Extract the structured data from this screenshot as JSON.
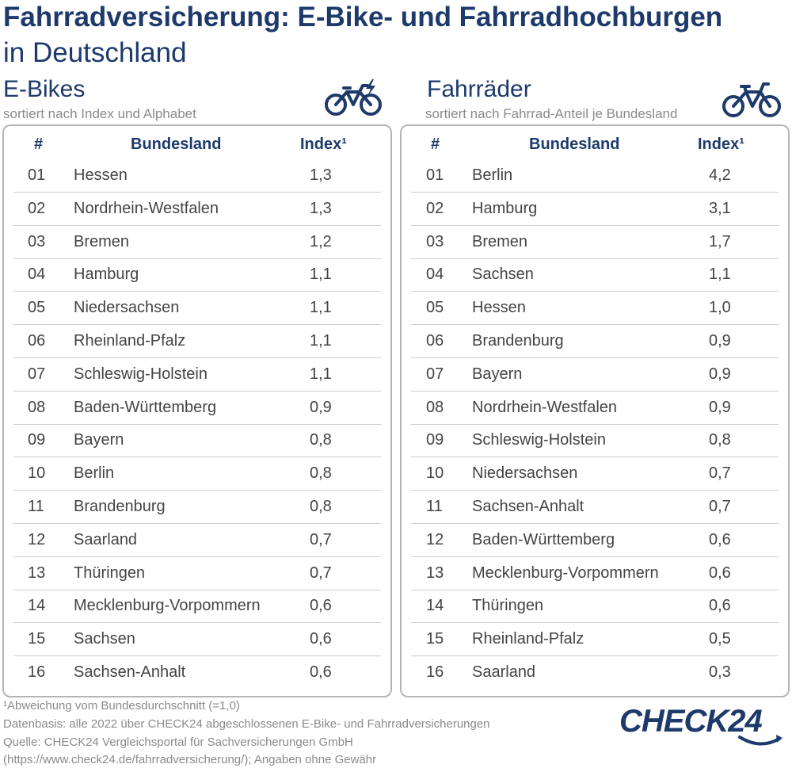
{
  "header": {
    "title_line1": "Fahrradversicherung: E-Bike- und Fahrradhochburgen",
    "title_line2": "in Deutschland"
  },
  "left": {
    "title": "E-Bikes",
    "subtitle": "sortiert nach Index und Alphabet",
    "icon": "e-bike-icon",
    "columns": {
      "rank": "#",
      "state": "Bundesland",
      "index": "Index¹"
    },
    "rows": [
      {
        "rank": "01",
        "state": "Hessen",
        "index": "1,3"
      },
      {
        "rank": "02",
        "state": "Nordrhein-Westfalen",
        "index": "1,3"
      },
      {
        "rank": "03",
        "state": "Bremen",
        "index": "1,2"
      },
      {
        "rank": "04",
        "state": "Hamburg",
        "index": "1,1"
      },
      {
        "rank": "05",
        "state": "Niedersachsen",
        "index": "1,1"
      },
      {
        "rank": "06",
        "state": "Rheinland-Pfalz",
        "index": "1,1"
      },
      {
        "rank": "07",
        "state": "Schleswig-Holstein",
        "index": "1,1"
      },
      {
        "rank": "08",
        "state": "Baden-Württemberg",
        "index": "0,9"
      },
      {
        "rank": "09",
        "state": "Bayern",
        "index": "0,8"
      },
      {
        "rank": "10",
        "state": "Berlin",
        "index": "0,8"
      },
      {
        "rank": "11",
        "state": "Brandenburg",
        "index": "0,8"
      },
      {
        "rank": "12",
        "state": "Saarland",
        "index": "0,7"
      },
      {
        "rank": "13",
        "state": "Thüringen",
        "index": "0,7"
      },
      {
        "rank": "14",
        "state": "Mecklenburg-Vorpommern",
        "index": "0,6"
      },
      {
        "rank": "15",
        "state": "Sachsen",
        "index": "0,6"
      },
      {
        "rank": "16",
        "state": "Sachsen-Anhalt",
        "index": "0,6"
      }
    ]
  },
  "right": {
    "title": "Fahrräder",
    "subtitle": "sortiert nach Fahrrad-Anteil je Bundesland",
    "icon": "bicycle-icon",
    "columns": {
      "rank": "#",
      "state": "Bundesland",
      "index": "Index¹"
    },
    "rows": [
      {
        "rank": "01",
        "state": "Berlin",
        "index": "4,2"
      },
      {
        "rank": "02",
        "state": "Hamburg",
        "index": "3,1"
      },
      {
        "rank": "03",
        "state": "Bremen",
        "index": "1,7"
      },
      {
        "rank": "04",
        "state": "Sachsen",
        "index": "1,1"
      },
      {
        "rank": "05",
        "state": "Hessen",
        "index": "1,0"
      },
      {
        "rank": "06",
        "state": "Brandenburg",
        "index": "0,9"
      },
      {
        "rank": "07",
        "state": "Bayern",
        "index": "0,9"
      },
      {
        "rank": "08",
        "state": "Nordrhein-Westfalen",
        "index": "0,9"
      },
      {
        "rank": "09",
        "state": "Schleswig-Holstein",
        "index": "0,8"
      },
      {
        "rank": "10",
        "state": "Niedersachsen",
        "index": "0,7"
      },
      {
        "rank": "11",
        "state": "Sachsen-Anhalt",
        "index": "0,7"
      },
      {
        "rank": "12",
        "state": "Baden-Württemberg",
        "index": "0,6"
      },
      {
        "rank": "13",
        "state": "Mecklenburg-Vorpommern",
        "index": "0,6"
      },
      {
        "rank": "14",
        "state": "Thüringen",
        "index": "0,6"
      },
      {
        "rank": "15",
        "state": "Rheinland-Pfalz",
        "index": "0,5"
      },
      {
        "rank": "16",
        "state": "Saarland",
        "index": "0,3"
      }
    ]
  },
  "footer": {
    "notes": [
      "¹Abweichung vom Bundesdurchschnitt (=1,0)",
      "Datenbasis: alle 2022 über CHECK24 abgeschlossenen E-Bike- und Fahrradversicherungen",
      "Quelle: CHECK24 Vergleichsportal für Sachversicherungen GmbH",
      "(https://www.check24.de/fahrradversicherung/); Angaben ohne Gewähr"
    ],
    "logo": "CHECK24"
  },
  "colors": {
    "brand_navy": "#1d3a6b",
    "muted_text": "#8a8a8a",
    "panel_border": "#b5b5b5",
    "row_divider": "#cfcfcf"
  }
}
